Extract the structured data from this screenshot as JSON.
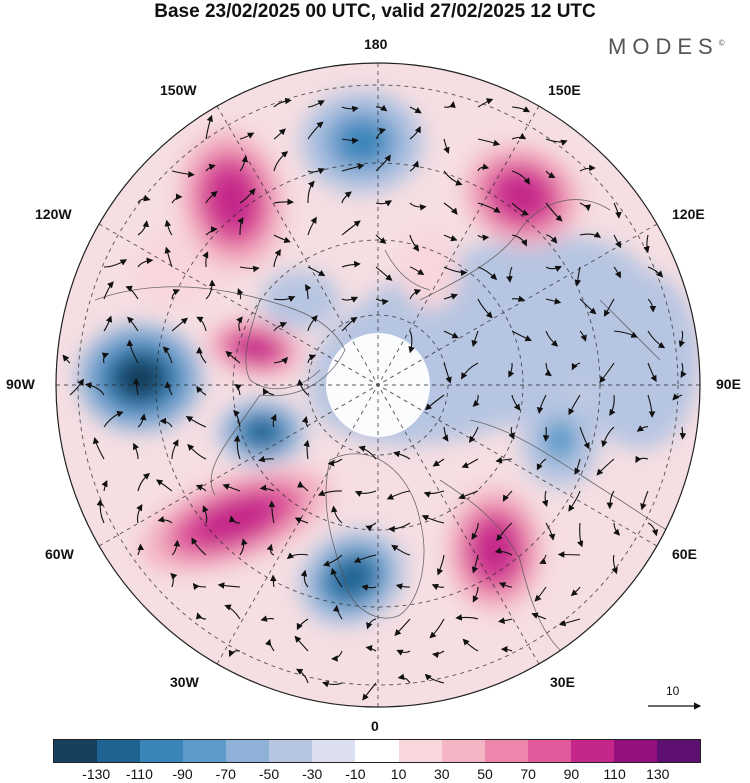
{
  "header": {
    "title": "Base 23/02/2025 00 UTC, valid 27/02/2025 12 UTC",
    "brand": "MODES",
    "brand_mark": "©"
  },
  "map": {
    "projection": "north polar stereographic",
    "longitude_labels": {
      "top": "180",
      "bottom": "0",
      "left": "90W",
      "right": "90E",
      "upper_left_1": "150W",
      "upper_left_2": "120W",
      "upper_right_1": "150E",
      "upper_right_2": "120E",
      "lower_left_1": "60W",
      "lower_left_2": "30W",
      "lower_right_1": "60E",
      "lower_right_2": "30E"
    },
    "vector_scale_label": "10",
    "anomaly_centers": [
      {
        "name": "aleutian-low-anomaly",
        "sign": "negative",
        "value": -90
      },
      {
        "name": "alaska-high-anomaly",
        "sign": "positive",
        "value": 110
      },
      {
        "name": "east-siberia-high-anomaly",
        "sign": "positive",
        "value": 110
      },
      {
        "name": "canada-low-anomaly",
        "sign": "negative",
        "value": -130
      },
      {
        "name": "hudson-low-anomaly",
        "sign": "negative",
        "value": -110
      },
      {
        "name": "baffin-high-anomaly",
        "sign": "positive",
        "value": 110
      },
      {
        "name": "atlantic-high-anomaly",
        "sign": "positive",
        "value": 110
      },
      {
        "name": "greenland-sea-low-anomaly",
        "sign": "negative",
        "value": -110
      },
      {
        "name": "europe-high-anomaly",
        "sign": "positive",
        "value": 110
      },
      {
        "name": "siberia-low-anomaly",
        "sign": "negative",
        "value": -70
      }
    ]
  },
  "colorbar": {
    "labels": [
      "-130",
      "-110",
      "-90",
      "-70",
      "-50",
      "-30",
      "-10",
      "10",
      "30",
      "50",
      "70",
      "90",
      "110",
      "130"
    ],
    "colors": [
      "#16405e",
      "#1f6393",
      "#3a86bb",
      "#5d9bca",
      "#8fb1d8",
      "#b6c5e1",
      "#dcdff0",
      "#ffffff",
      "#f8d6dc",
      "#f3b4c3",
      "#ec86ad",
      "#e05a9c",
      "#c4268a",
      "#95127e",
      "#5e0f72"
    ]
  }
}
